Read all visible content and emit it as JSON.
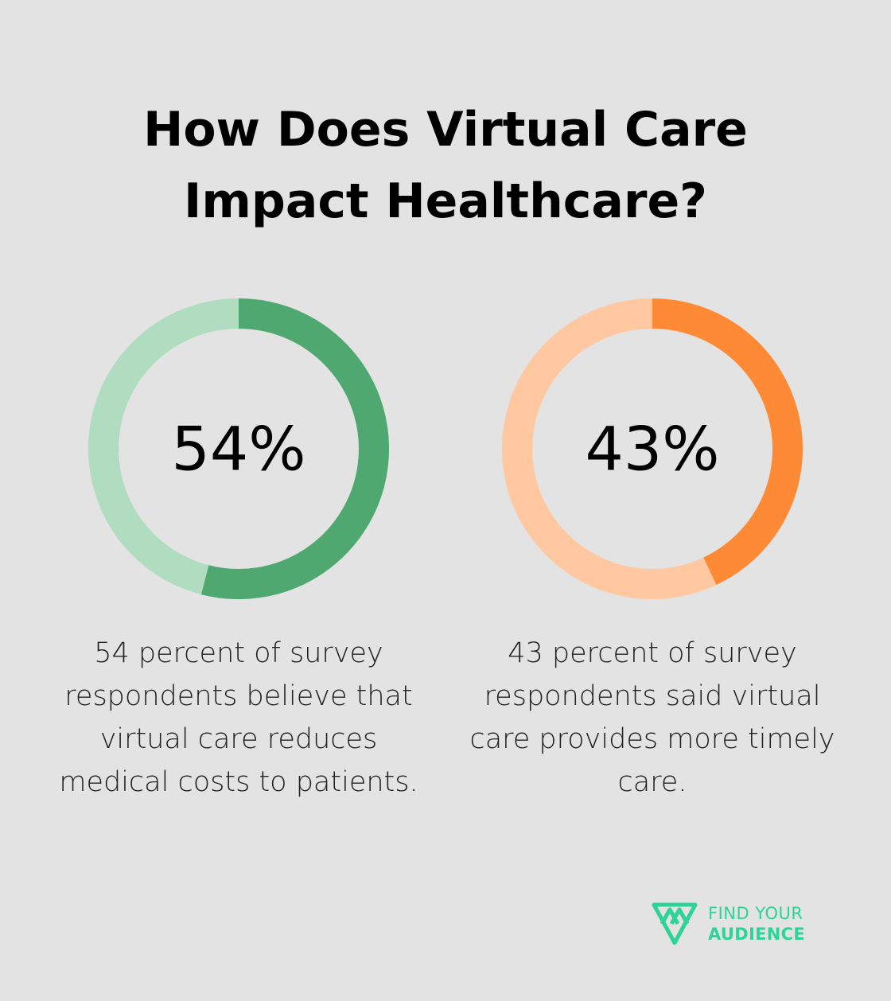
{
  "title": {
    "line1": "How Does Virtual Care",
    "line2": "Impact Healthcare?"
  },
  "chart_data": [
    {
      "type": "pie",
      "variant": "donut",
      "value": 54,
      "label": "54%",
      "caption": "54 percent of survey respondents believe that virtual care reduces medical costs to patients.",
      "caption_lines": [
        "54 percent of survey",
        "respondents believe that",
        "virtual care reduces",
        "medical costs to patients."
      ],
      "colors": {
        "fill": "#4ea86f",
        "track": "#b0dcc0"
      }
    },
    {
      "type": "pie",
      "variant": "donut",
      "value": 43,
      "label": "43%",
      "caption": "43 percent of survey respondents said virtual care provides more timely care.",
      "caption_lines": [
        "43 percent of survey",
        "respondents said virtual",
        "care provides more timely",
        "care."
      ],
      "colors": {
        "fill": "#ff8a36",
        "track": "#ffc8a0"
      }
    }
  ],
  "logo": {
    "line1": "FIND YOUR",
    "line2": "AUDIENCE",
    "color": "#2ed398",
    "icon": "find-your-audience-logo-icon"
  }
}
